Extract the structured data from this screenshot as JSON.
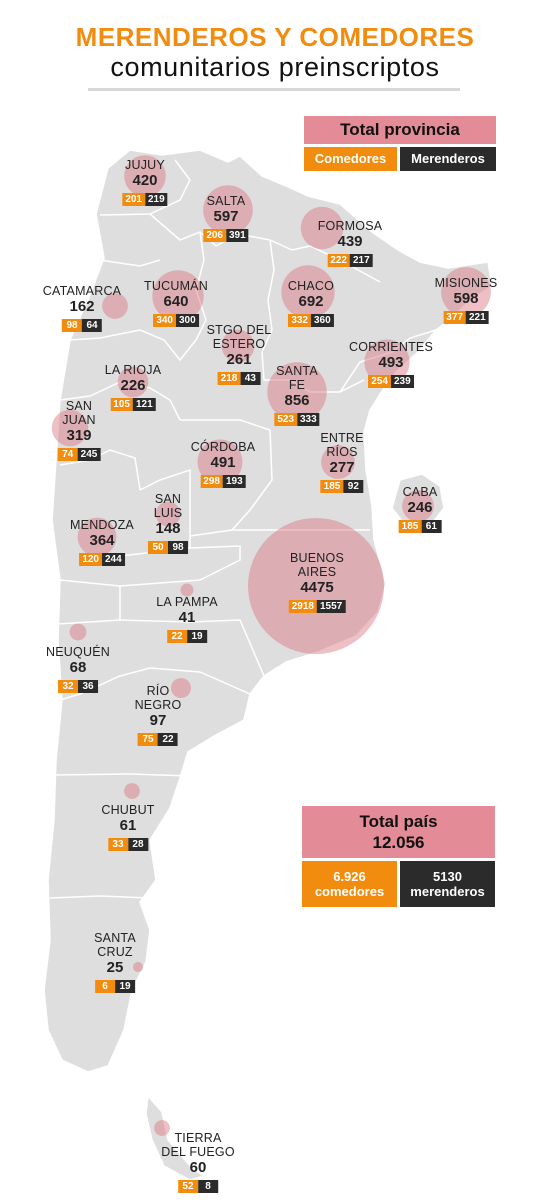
{
  "title": {
    "line1": "MERENDEROS Y COMEDORES",
    "line2": "comunitarios preinscriptos"
  },
  "legend": {
    "total_label": "Total provincia",
    "comedores_label": "Comedores",
    "merenderos_label": "Merenderos"
  },
  "colors": {
    "comedores": "#f28c0f",
    "merenderos": "#2b2b2b",
    "total": "#e38b96",
    "bubble": "#d9737f",
    "land": "#dedede"
  },
  "country_total": {
    "label": "Total país",
    "value": "12.056",
    "comedores_value": "6.926",
    "comedores_label": "comedores",
    "merenderos_value": "5130",
    "merenderos_label": "merenderos"
  },
  "provinces": [
    {
      "id": "jujuy",
      "name": [
        "JUJUY"
      ],
      "total": "420",
      "comedores": "201",
      "merenderos": "219"
    },
    {
      "id": "salta",
      "name": [
        "SALTA"
      ],
      "total": "597",
      "comedores": "206",
      "merenderos": "391"
    },
    {
      "id": "formosa",
      "name": [
        "FORMOSA"
      ],
      "total": "439",
      "comedores": "222",
      "merenderos": "217"
    },
    {
      "id": "misiones",
      "name": [
        "MISIONES"
      ],
      "total": "598",
      "comedores": "377",
      "merenderos": "221"
    },
    {
      "id": "catamarca",
      "name": [
        "CATAMARCA"
      ],
      "total": "162",
      "comedores": "98",
      "merenderos": "64"
    },
    {
      "id": "tucuman",
      "name": [
        "TUCUMÁN"
      ],
      "total": "640",
      "comedores": "340",
      "merenderos": "300"
    },
    {
      "id": "chaco",
      "name": [
        "CHACO"
      ],
      "total": "692",
      "comedores": "332",
      "merenderos": "360"
    },
    {
      "id": "stgo",
      "name": [
        "STGO DEL",
        "ESTERO"
      ],
      "total": "261",
      "comedores": "218",
      "merenderos": "43"
    },
    {
      "id": "corrientes",
      "name": [
        "CORRIENTES"
      ],
      "total": "493",
      "comedores": "254",
      "merenderos": "239"
    },
    {
      "id": "larioja",
      "name": [
        "LA RIOJA"
      ],
      "total": "226",
      "comedores": "105",
      "merenderos": "121"
    },
    {
      "id": "santafe",
      "name": [
        "SANTA",
        "FE"
      ],
      "total": "856",
      "comedores": "523",
      "merenderos": "333"
    },
    {
      "id": "sanjuan",
      "name": [
        "SAN",
        "JUAN"
      ],
      "total": "319",
      "comedores": "74",
      "merenderos": "245"
    },
    {
      "id": "cordoba",
      "name": [
        "CÓRDOBA"
      ],
      "total": "491",
      "comedores": "298",
      "merenderos": "193"
    },
    {
      "id": "entrerios",
      "name": [
        "ENTRE",
        "RÍOS"
      ],
      "total": "277",
      "comedores": "185",
      "merenderos": "92"
    },
    {
      "id": "caba",
      "name": [
        "CABA"
      ],
      "total": "246",
      "comedores": "185",
      "merenderos": "61"
    },
    {
      "id": "sanluis",
      "name": [
        "SAN",
        "LUIS"
      ],
      "total": "148",
      "comedores": "50",
      "merenderos": "98"
    },
    {
      "id": "mendoza",
      "name": [
        "MENDOZA"
      ],
      "total": "364",
      "comedores": "120",
      "merenderos": "244"
    },
    {
      "id": "bsas",
      "name": [
        "BUENOS",
        "AIRES"
      ],
      "total": "4475",
      "comedores": "2918",
      "merenderos": "1557"
    },
    {
      "id": "lapampa",
      "name": [
        "LA PAMPA"
      ],
      "total": "41",
      "comedores": "22",
      "merenderos": "19"
    },
    {
      "id": "neuquen",
      "name": [
        "NEUQUÉN"
      ],
      "total": "68",
      "comedores": "32",
      "merenderos": "36"
    },
    {
      "id": "rionegro",
      "name": [
        "RÍO",
        "NEGRO"
      ],
      "total": "97",
      "comedores": "75",
      "merenderos": "22"
    },
    {
      "id": "chubut",
      "name": [
        "CHUBUT"
      ],
      "total": "61",
      "comedores": "33",
      "merenderos": "28"
    },
    {
      "id": "santacruz",
      "name": [
        "SANTA",
        "CRUZ"
      ],
      "total": "25",
      "comedores": "6",
      "merenderos": "19"
    },
    {
      "id": "tdf",
      "name": [
        "TIERRA",
        "DEL FUEGO"
      ],
      "total": "60",
      "comedores": "52",
      "merenderos": "8"
    }
  ]
}
